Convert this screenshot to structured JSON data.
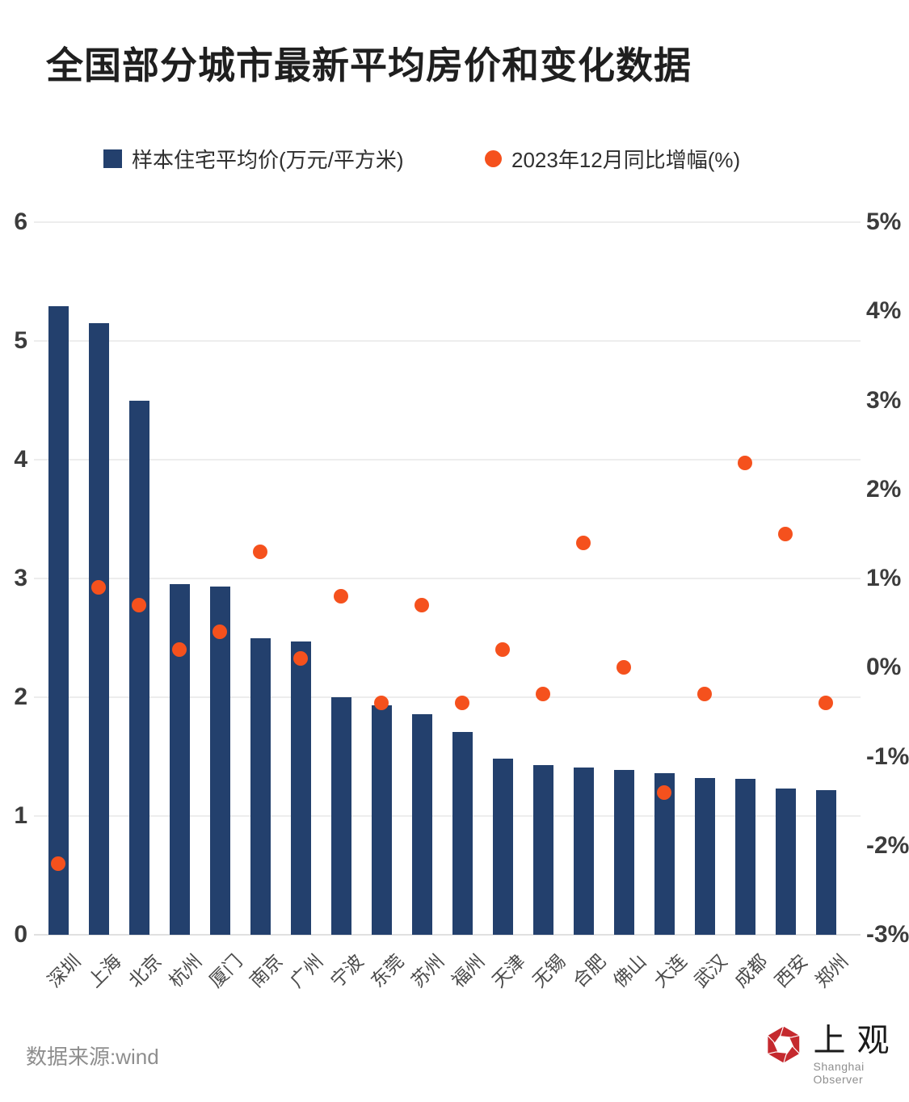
{
  "header": {
    "title": "全国部分城市最新平均房价和变化数据"
  },
  "legend": [
    {
      "label": "样本住宅平均价(万元/平方米)",
      "marker": "square",
      "color": "#23406d"
    },
    {
      "label": "2023年12月同比增幅(%)",
      "marker": "circle",
      "color": "#f5511d"
    }
  ],
  "footer": {
    "source": "数据来源:wind",
    "logo": {
      "icon": "shanghai-observer-aperture-icon",
      "cn": "上观",
      "en": "Shanghai Observer",
      "color": "#c5292e"
    }
  },
  "chart_data": {
    "type": "bar",
    "title": "全国部分城市最新平均房价和变化数据",
    "categories": [
      "深圳",
      "上海",
      "北京",
      "杭州",
      "厦门",
      "南京",
      "广州",
      "宁波",
      "东莞",
      "苏州",
      "福州",
      "天津",
      "无锡",
      "合肥",
      "佛山",
      "大连",
      "武汉",
      "成都",
      "西安",
      "郑州"
    ],
    "series": [
      {
        "name": "样本住宅平均价(万元/平方米)",
        "type": "bar",
        "axis": "left",
        "color": "#23406d",
        "values": [
          5.29,
          5.15,
          4.5,
          2.95,
          2.93,
          2.5,
          2.47,
          2.0,
          1.93,
          1.86,
          1.71,
          1.48,
          1.43,
          1.41,
          1.39,
          1.36,
          1.32,
          1.31,
          1.23,
          1.22
        ]
      },
      {
        "name": "2023年12月同比增幅(%)",
        "type": "scatter",
        "axis": "right",
        "color": "#f5511d",
        "values": [
          -2.2,
          0.9,
          0.7,
          0.2,
          0.4,
          1.3,
          0.1,
          0.8,
          -0.4,
          0.7,
          -0.4,
          0.2,
          -0.3,
          1.4,
          0.0,
          -1.4,
          -0.3,
          2.3,
          1.5,
          -0.4
        ]
      }
    ],
    "left_axis": {
      "label": "",
      "min": 0,
      "max": 6,
      "ticks": [
        6,
        5,
        4,
        3,
        2,
        1,
        0
      ]
    },
    "right_axis": {
      "label": "",
      "min": -3,
      "max": 5,
      "ticks": [
        "5%",
        "4%",
        "3%",
        "2%",
        "1%",
        "0%",
        "-1%",
        "-2%",
        "-3%"
      ]
    },
    "grid": true,
    "legend_position": "top",
    "xlabel": "",
    "ylabel": ""
  }
}
